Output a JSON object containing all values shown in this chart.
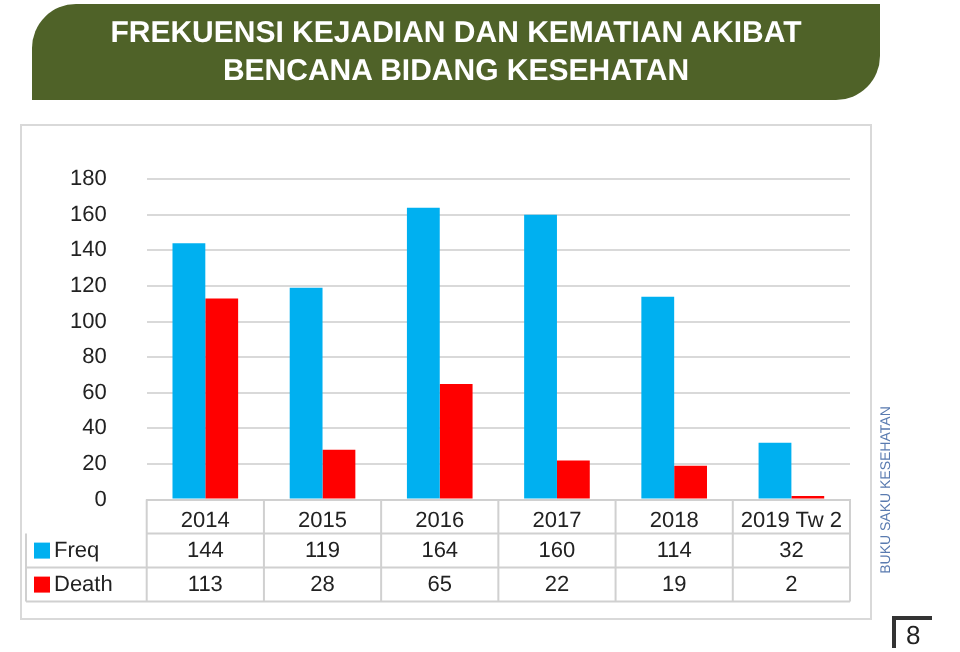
{
  "chart_data": {
    "type": "bar",
    "title": "FREKUENSI KEJADIAN DAN KEMATIAN AKIBAT BENCANA BIDANG KESEHATAN",
    "categories": [
      "2014",
      "2015",
      "2016",
      "2017",
      "2018",
      "2019 Tw 2"
    ],
    "series": [
      {
        "name": "Freq",
        "color": "#00b0f0",
        "values": [
          144,
          119,
          164,
          160,
          114,
          32
        ]
      },
      {
        "name": "Death",
        "color": "#ff0000",
        "values": [
          113,
          28,
          65,
          22,
          19,
          2
        ]
      }
    ],
    "ylim": [
      0,
      180
    ],
    "yticks": [
      0,
      20,
      40,
      60,
      80,
      100,
      120,
      140,
      160,
      180
    ],
    "grid": "y",
    "legend": "bottom",
    "data_labels": true,
    "annotations": [
      "BUKU SAKU KESEHATAN",
      "8"
    ]
  }
}
